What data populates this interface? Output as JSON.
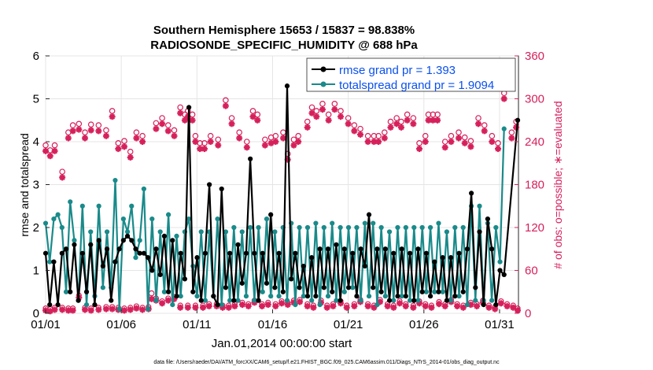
{
  "chart_data": {
    "type": "line",
    "title_line1": "Southern Hemisphere 15653 / 15837 = 98.838%",
    "title_line2": "RADIOSONDE_SPECIFIC_HUMIDITY @ 688 hPa",
    "xlabel": "Jan.01,2014 00:00:00 start",
    "ylabel_left": "rmse and totalspread",
    "ylabel_right": "# of obs: o=possible; ∗=evaluated",
    "footer": "data file: /Users/raeder/DAI/ATM_forcXX/CAM6_setup/f.e21.FHIST_BGC.f09_025.CAM6assim.011/Diags_NTrS_2014-01/obs_diag_output.nc",
    "xlim": [
      1,
      32.25
    ],
    "ylim_left": [
      0,
      6
    ],
    "ylim_right": [
      0,
      360
    ],
    "x_ticks": [
      1,
      6,
      11,
      16,
      21,
      26,
      31
    ],
    "x_tick_labels": [
      "01/01",
      "01/06",
      "01/11",
      "01/16",
      "01/21",
      "01/26",
      "01/31"
    ],
    "y_ticks_left": [
      0,
      1,
      2,
      3,
      4,
      5,
      6
    ],
    "y_ticks_right": [
      0,
      60,
      120,
      180,
      240,
      300,
      360
    ],
    "series": [
      {
        "name": "rmse",
        "legend": "rmse grand pr = 1.393",
        "color": "#000000",
        "axis": "left",
        "values": [
          1.4,
          0.2,
          1.2,
          0.2,
          1.4,
          1.5,
          0.5,
          1.6,
          0.3,
          1.4,
          0.5,
          1.6,
          0.2,
          1.7,
          1.1,
          1.5,
          0.3,
          1.2,
          1.5,
          1.7,
          1.8,
          1.7,
          1.5,
          1.4,
          1.4,
          1.3,
          1.0,
          1.5,
          0.9,
          1.8,
          0.5,
          1.7,
          0.4,
          1.4,
          0.8,
          4.8,
          0.5,
          1.3,
          0.3,
          1.4,
          3.0,
          0.4,
          0.2,
          2.9,
          0.6,
          1.4,
          0.3,
          1.6,
          0.7,
          1.4,
          3.6,
          1.4,
          0.3,
          1.4,
          0.7,
          2.3,
          0.6,
          1.4,
          0.5,
          5.3,
          0.8,
          1.4,
          0.6,
          1.1,
          0.4,
          1.3,
          0.4,
          1.5,
          0.6,
          1.5,
          0.5,
          1.6,
          0.3,
          1.5,
          0.6,
          1.4,
          0.4,
          1.5,
          1.1,
          2.3,
          0.6,
          1.5,
          0.5,
          1.5,
          0.3,
          1.4,
          0.4,
          1.5,
          0.4,
          1.4,
          0.3,
          1.5,
          0.5,
          1.4,
          0.4,
          1.2,
          0.5,
          1.3,
          0.3,
          1.3,
          0.4,
          1.4,
          0.5,
          1.5,
          2.8,
          0.6,
          1.9,
          0.2,
          2.2,
          1.5,
          0.2,
          1.0,
          0.9
        ],
        "last_value": 4.5
      },
      {
        "name": "totalspread",
        "legend": "totalspread grand pr = 1.9094",
        "color": "#1a8a8a",
        "axis": "left",
        "values": [
          2.1,
          1.2,
          2.2,
          2.3,
          2.0,
          0.5,
          2.6,
          1.7,
          0.3,
          2.5,
          0.2,
          1.9,
          0.4,
          2.5,
          0.6,
          1.9,
          0.6,
          3.1,
          0.1,
          2.2,
          1.9,
          2.5,
          1.3,
          1.7,
          2.9,
          0.1,
          2.2,
          0.3,
          1.9,
          0.5,
          2.3,
          0.2,
          1.8,
          0.4,
          1.9,
          2.2,
          1.1,
          0.4,
          1.9,
          0.3,
          1.9,
          0.4,
          2.2,
          0.2,
          1.9,
          0.3,
          2.0,
          0.3,
          1.9,
          0.4,
          2.0,
          0.3,
          2.0,
          0.5,
          2.2,
          0.4,
          1.9,
          0.4,
          2.0,
          0.3,
          2.1,
          0.2,
          2.0,
          0.4,
          2.0,
          0.3,
          2.1,
          0.2,
          2.0,
          0.4,
          2.1,
          0.3,
          2.0,
          0.5,
          2.0,
          0.6,
          2.0,
          0.3,
          2.1,
          0.4,
          2.1,
          0.2,
          2.0,
          0.4,
          1.9,
          0.3,
          2.0,
          0.4,
          2.0,
          0.3,
          2.0,
          0.3,
          2.0,
          0.5,
          2.0,
          0.5,
          2.1,
          0.5,
          1.9,
          0.3,
          2.0,
          0.4,
          2.0,
          0.2,
          2.5,
          0.3,
          2.5,
          0.3,
          2.1,
          0.3,
          2.0,
          1.2,
          4.3
        ]
      },
      {
        "name": "possible",
        "marker": "o",
        "color": "#d6205b",
        "axis": "right",
        "values": [
          7,
          8,
          9,
          8,
          6,
          9,
          8,
          7,
          9,
          8,
          9,
          8,
          9,
          7,
          8,
          9,
          8,
          9,
          7,
          8,
          9,
          8,
          9,
          8,
          9,
          8,
          9,
          7,
          8,
          9,
          8,
          9,
          8,
          9,
          8,
          9,
          9,
          8,
          7,
          8,
          9,
          7,
          8,
          9,
          8,
          9,
          8,
          9,
          8,
          9,
          8,
          9,
          8,
          9,
          8,
          9,
          8,
          9,
          8,
          7,
          8,
          9,
          8,
          9,
          8,
          9,
          8,
          9,
          8,
          9,
          8,
          9,
          8,
          9,
          8,
          9,
          8,
          9,
          8,
          9,
          8,
          9,
          8,
          9,
          8,
          9,
          8,
          9,
          8,
          9,
          8,
          9,
          8,
          9,
          8,
          9,
          8,
          9,
          8,
          9,
          8,
          9,
          8,
          9,
          8,
          9,
          8,
          9,
          8,
          9,
          8,
          9,
          8,
          9,
          8,
          9,
          8,
          9,
          8,
          9,
          8,
          9,
          8,
          9,
          8,
          9,
          8,
          9,
          8,
          9,
          4
        ]
      },
      {
        "name": "evaluated",
        "marker": "*",
        "color": "#d6205b",
        "axis": "right",
        "points": [
          [
            1.0,
            227
          ],
          [
            1.3,
            220
          ],
          [
            1.6,
            227
          ],
          [
            2.1,
            190
          ],
          [
            2.5,
            245
          ],
          [
            2.8,
            255
          ],
          [
            3.2,
            257
          ],
          [
            3.6,
            245
          ],
          [
            4.0,
            256
          ],
          [
            4.5,
            255
          ],
          [
            5.0,
            248
          ],
          [
            5.4,
            275
          ],
          [
            5.8,
            230
          ],
          [
            6.2,
            233
          ],
          [
            6.6,
            218
          ],
          [
            7.0,
            245
          ],
          [
            7.4,
            240
          ],
          [
            8.0,
            20
          ],
          [
            8.3,
            258
          ],
          [
            8.7,
            265
          ],
          [
            9.1,
            255
          ],
          [
            9.5,
            248
          ],
          [
            9.9,
            280
          ],
          [
            10.2,
            270
          ],
          [
            10.4,
            275
          ],
          [
            10.7,
            270
          ],
          [
            10.9,
            240
          ],
          [
            11.2,
            230
          ],
          [
            11.5,
            230
          ],
          [
            11.9,
            240
          ],
          [
            12.4,
            235
          ],
          [
            12.9,
            290
          ],
          [
            13.3,
            265
          ],
          [
            13.8,
            245
          ],
          [
            14.3,
            232
          ],
          [
            14.7,
            275
          ],
          [
            15.0,
            270
          ],
          [
            15.5,
            235
          ],
          [
            15.9,
            238
          ],
          [
            16.2,
            240
          ],
          [
            16.7,
            245
          ],
          [
            17.0,
            215
          ],
          [
            17.4,
            235
          ],
          [
            17.7,
            240
          ],
          [
            18.3,
            260
          ],
          [
            18.6,
            280
          ],
          [
            18.9,
            275
          ],
          [
            19.3,
            285
          ],
          [
            19.7,
            270
          ],
          [
            20.1,
            285
          ],
          [
            20.5,
            275
          ],
          [
            21.0,
            265
          ],
          [
            21.4,
            255
          ],
          [
            21.8,
            250
          ],
          [
            22.3,
            240
          ],
          [
            22.7,
            240
          ],
          [
            23.0,
            240
          ],
          [
            23.4,
            245
          ],
          [
            23.8,
            260
          ],
          [
            24.2,
            265
          ],
          [
            24.5,
            260
          ],
          [
            24.9,
            270
          ],
          [
            25.3,
            265
          ],
          [
            25.7,
            230
          ],
          [
            26.1,
            240
          ],
          [
            26.3,
            270
          ],
          [
            26.6,
            270
          ],
          [
            26.9,
            270
          ],
          [
            27.4,
            232
          ],
          [
            27.8,
            240
          ],
          [
            28.3,
            245
          ],
          [
            28.7,
            238
          ],
          [
            29.1,
            233
          ],
          [
            29.6,
            265
          ],
          [
            30.0,
            255
          ],
          [
            30.5,
            240
          ],
          [
            30.9,
            230
          ],
          [
            31.3,
            300
          ],
          [
            31.8,
            245
          ],
          [
            32.1,
            260
          ]
        ],
        "low_points": [
          [
            1.0,
            4
          ],
          [
            1.3,
            3
          ],
          [
            1.6,
            5
          ],
          [
            2.1,
            5
          ],
          [
            2.5,
            4
          ],
          [
            2.8,
            4
          ],
          [
            3.2,
            22
          ],
          [
            3.6,
            5
          ],
          [
            4.0,
            4
          ],
          [
            4.5,
            5
          ],
          [
            5.0,
            6
          ],
          [
            5.4,
            6
          ],
          [
            5.8,
            5
          ],
          [
            6.2,
            4
          ],
          [
            6.6,
            5
          ],
          [
            7.0,
            7
          ],
          [
            7.4,
            5
          ],
          [
            7.8,
            6
          ],
          [
            8.3,
            18
          ],
          [
            8.7,
            14
          ],
          [
            9.1,
            18
          ],
          [
            9.5,
            20
          ],
          [
            9.9,
            8
          ],
          [
            10.4,
            8
          ],
          [
            10.9,
            8
          ],
          [
            11.4,
            8
          ],
          [
            11.8,
            10
          ],
          [
            12.3,
            10
          ],
          [
            12.7,
            8
          ],
          [
            13.1,
            8
          ],
          [
            13.5,
            10
          ],
          [
            14.0,
            12
          ],
          [
            14.4,
            10
          ],
          [
            14.8,
            15
          ],
          [
            15.3,
            10
          ],
          [
            15.7,
            12
          ],
          [
            16.2,
            10
          ],
          [
            16.6,
            14
          ],
          [
            17.0,
            12
          ],
          [
            17.4,
            15
          ],
          [
            17.8,
            16
          ],
          [
            18.3,
            10
          ],
          [
            18.7,
            8
          ],
          [
            19.2,
            15
          ],
          [
            19.6,
            8
          ],
          [
            20.0,
            10
          ],
          [
            20.5,
            14
          ],
          [
            20.9,
            8
          ],
          [
            21.4,
            10
          ],
          [
            21.8,
            16
          ],
          [
            22.3,
            10
          ],
          [
            22.7,
            8
          ],
          [
            23.1,
            16
          ],
          [
            23.6,
            10
          ],
          [
            24.0,
            8
          ],
          [
            24.4,
            14
          ],
          [
            24.8,
            10
          ],
          [
            25.3,
            8
          ],
          [
            25.7,
            14
          ],
          [
            26.1,
            10
          ],
          [
            26.5,
            8
          ],
          [
            27.0,
            13
          ],
          [
            27.4,
            10
          ],
          [
            27.8,
            16
          ],
          [
            28.2,
            10
          ],
          [
            28.6,
            8
          ],
          [
            29.1,
            12
          ],
          [
            29.5,
            10
          ],
          [
            29.9,
            15
          ],
          [
            30.3,
            8
          ],
          [
            30.7,
            6
          ],
          [
            31.1,
            14
          ],
          [
            31.5,
            10
          ],
          [
            31.9,
            8
          ],
          [
            32.2,
            4
          ]
        ]
      }
    ]
  }
}
